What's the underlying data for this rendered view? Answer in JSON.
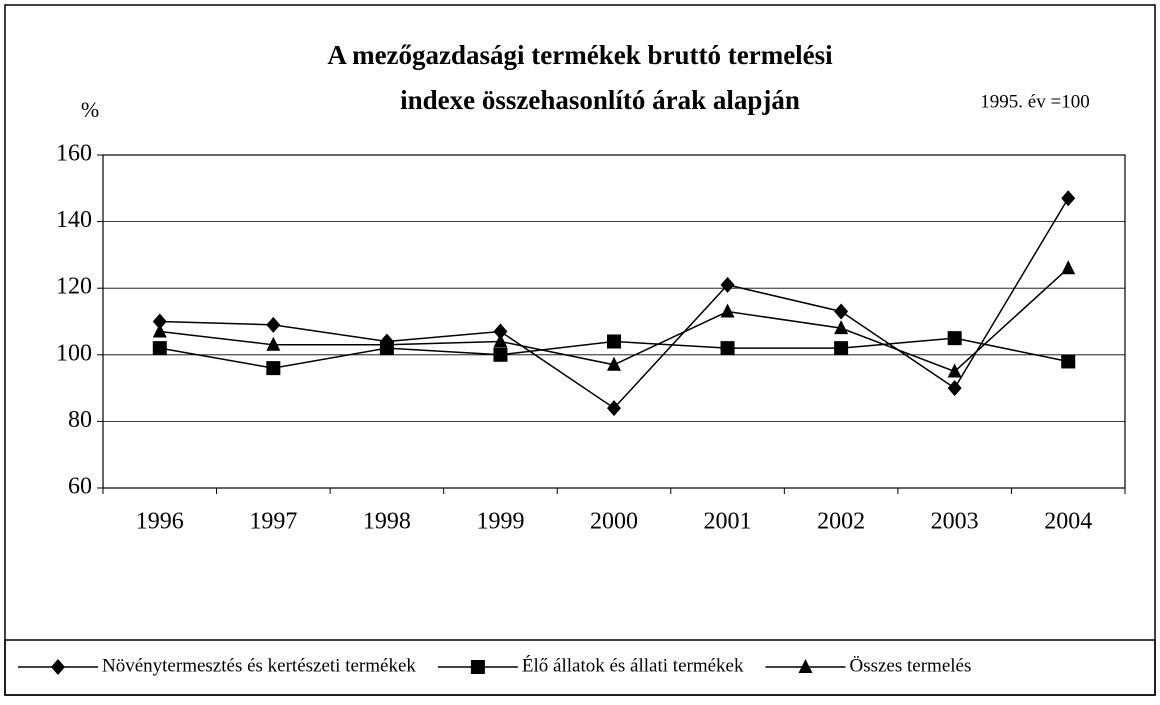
{
  "chart_data": {
    "type": "line",
    "title": "A mezőgazdasági termékek bruttó termelési",
    "subtitle": "indexe összehasonlító árak alapján",
    "y_label": "%",
    "annotation": "1995. év =100",
    "categories": [
      "1996",
      "1997",
      "1998",
      "1999",
      "2000",
      "2001",
      "2002",
      "2003",
      "2004"
    ],
    "series": [
      {
        "name": "Növénytermesztés és kertészeti termékek",
        "color": "#000000",
        "marker": "diamond",
        "values": [
          110,
          109,
          104,
          107,
          84,
          121,
          113,
          90,
          147
        ]
      },
      {
        "name": "Élő állatok és állati termékek",
        "color": "#000000",
        "marker": "square",
        "values": [
          102,
          96,
          102,
          100,
          104,
          102,
          102,
          105,
          98
        ]
      },
      {
        "name": "Összes termelés",
        "color": "#000000",
        "marker": "triangle",
        "values": [
          107,
          103,
          103,
          104,
          97,
          113,
          108,
          95,
          126
        ]
      }
    ],
    "ylim": [
      60,
      160
    ],
    "yticks": [
      60,
      80,
      100,
      120,
      140,
      160
    ],
    "grid": true,
    "legend": "bottom"
  }
}
